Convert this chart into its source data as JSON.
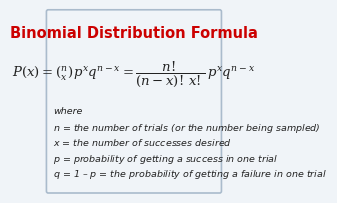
{
  "title": "Binomial Distribution Formula",
  "title_color": "#cc0000",
  "title_fontsize": 10.5,
  "formula_line1": "$P(x) = \\binom{n}{x} p^x q^{n-x} = \\dfrac{n!}{(n-x)!\\, x!}\\, p^x q^{n-x}$",
  "formula_fontsize": 9.5,
  "where_text": "where",
  "definitions": [
    "$n$ = the number of trials (or the number being sampled)",
    "$x$ = the number of successes desired",
    "$p$ = probability of getting a success in one trial",
    "$q$ = 1 – $p$ = the probability of getting a failure in one trial"
  ],
  "def_fontsize": 6.8,
  "background_color": "#f0f4f8",
  "border_color": "#aabbcc",
  "text_color": "#222222"
}
